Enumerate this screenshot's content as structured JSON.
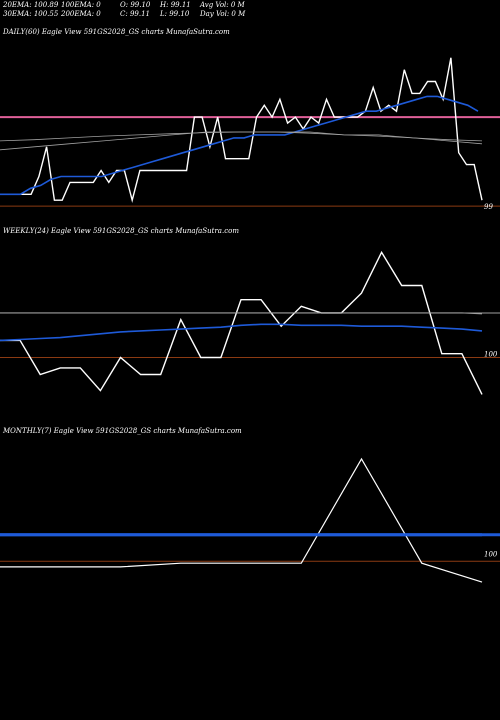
{
  "header": {
    "ema20": "20EMA: 100.89",
    "ema100": "100EMA: 0",
    "open": "O: 99.10",
    "high": "H: 99.11",
    "avg_vol": "Avg Vol: 0  M",
    "ema30": "30EMA: 100.55",
    "ema200": "200EMA: 0",
    "close": "C: 99.11",
    "low": "L: 99.10",
    "day_vol": "Day Vol: 0  M"
  },
  "panels": {
    "daily": "DAILY(60) Eagle   View  591GS2028_GS charts MunafaSutra.com",
    "weekly": "WEEKLY(24) Eagle   View  591GS2028_GS charts MunafaSutra.com",
    "monthly": "MONTHLY(7) Eagle   View  591GS2028_GS charts MunafaSutra.com"
  },
  "colors": {
    "price": "#ffffff",
    "ema": "#1e5ad8",
    "ref_pink": "#e0609a",
    "ref_brown": "#8b3a12",
    "ref_grey": "#a0a0a0"
  },
  "chart_data": [
    {
      "type": "line",
      "title": "DAILY(60)",
      "ylim": [
        98.8,
        101.8
      ],
      "y_tick_label": "99",
      "y_tick_value": 99.0,
      "reference_lines": [
        100.5,
        99.0
      ],
      "series": [
        {
          "values": [
            99.2,
            99.2,
            99.2,
            99.2,
            99.2,
            99.5,
            100.0,
            99.1,
            99.1,
            99.4,
            99.4,
            99.4,
            99.4,
            99.6,
            99.4,
            99.6,
            99.6,
            99.1,
            99.6,
            99.6,
            99.6,
            99.6,
            99.6,
            99.6,
            99.6,
            100.5,
            100.5,
            100.0,
            100.5,
            99.8,
            99.8,
            99.8,
            99.8,
            100.5,
            100.7,
            100.5,
            100.8,
            100.4,
            100.5,
            100.3,
            100.5,
            100.4,
            100.8,
            100.5,
            100.5,
            100.5,
            100.5,
            100.6,
            101.0,
            100.6,
            100.7,
            100.6,
            101.3,
            100.9,
            100.9,
            101.1,
            101.1,
            100.8,
            101.5,
            99.9,
            99.7,
            99.7,
            99.1
          ]
        },
        {
          "values": [
            99.2,
            99.2,
            99.2,
            99.3,
            99.35,
            99.45,
            99.5,
            99.5,
            99.5,
            99.5,
            99.5,
            99.55,
            99.6,
            99.65,
            99.7,
            99.75,
            99.8,
            99.85,
            99.9,
            99.95,
            100.0,
            100.05,
            100.1,
            100.15,
            100.15,
            100.2,
            100.2,
            100.2,
            100.2,
            100.25,
            100.3,
            100.35,
            100.4,
            100.45,
            100.5,
            100.55,
            100.6,
            100.6,
            100.65,
            100.7,
            100.75,
            100.8,
            100.85,
            100.85,
            100.8,
            100.75,
            100.7,
            100.6
          ]
        },
        {
          "values": [
            99.95,
            100.0,
            100.05,
            100.1,
            100.15,
            100.2,
            100.25,
            100.25,
            100.25,
            100.25,
            100.2,
            100.2,
            100.15,
            100.1,
            100.05
          ]
        },
        {
          "values": [
            100.1,
            100.12,
            100.15,
            100.18,
            100.2,
            100.22,
            100.24,
            100.25,
            100.25,
            100.23,
            100.2,
            100.18,
            100.15,
            100.12,
            100.1
          ]
        }
      ]
    },
    {
      "type": "line",
      "title": "WEEKLY(24)",
      "ylim": [
        99.3,
        101.2
      ],
      "y_tick_label": "100",
      "y_tick_value": 100.0,
      "reference_lines": [
        100.43,
        99.96
      ],
      "series": [
        {
          "values": [
            100.14,
            100.14,
            99.78,
            99.85,
            99.85,
            99.61,
            99.96,
            99.78,
            99.78,
            100.36,
            99.96,
            99.96,
            100.57,
            100.57,
            100.29,
            100.5,
            100.43,
            100.43,
            100.64,
            101.07,
            100.72,
            100.72,
            100.0,
            100.0,
            99.57
          ]
        },
        {
          "values": [
            100.14,
            100.15,
            100.16,
            100.17,
            100.19,
            100.21,
            100.23,
            100.24,
            100.25,
            100.26,
            100.27,
            100.28,
            100.3,
            100.31,
            100.31,
            100.3,
            100.3,
            100.3,
            100.29,
            100.29,
            100.29,
            100.28,
            100.27,
            100.26,
            100.24
          ]
        },
        {
          "values": [
            100.43,
            100.43,
            100.43,
            100.43,
            100.43,
            100.43,
            100.43,
            100.43,
            100.43,
            100.43,
            100.43,
            100.43,
            100.43,
            100.43,
            100.43,
            100.43,
            100.43,
            100.43,
            100.43,
            100.43,
            100.43,
            100.43,
            100.43,
            100.43,
            100.42
          ]
        }
      ]
    },
    {
      "type": "line",
      "title": "MONTHLY(7)",
      "ylim": [
        99.3,
        101.2
      ],
      "y_tick_label": "100",
      "y_tick_value": 100.0,
      "reference_lines": [
        100.2,
        99.92
      ],
      "series": [
        {
          "values": [
            99.86,
            99.86,
            99.86,
            99.9,
            99.9,
            99.9,
            101.0,
            99.9,
            99.7
          ]
        },
        {
          "values": [
            100.2,
            100.2,
            100.2,
            100.2,
            100.2,
            100.2,
            100.2,
            100.2,
            100.2
          ]
        }
      ]
    }
  ]
}
